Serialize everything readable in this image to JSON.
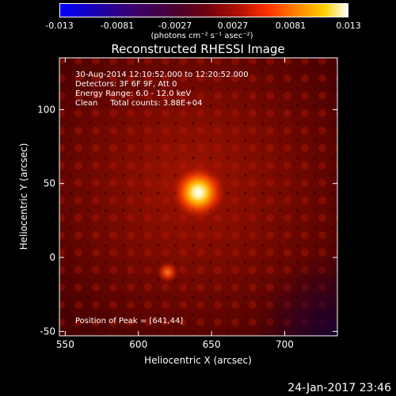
{
  "colorbar": {
    "tick_labels": [
      "-0.013",
      "-0.0081",
      "-0.0027",
      "0.0027",
      "0.0081",
      "0.013"
    ],
    "unit_label": "(photons cm⁻² s⁻¹ asec⁻²)"
  },
  "title": "Reconstructed RHESSI Image",
  "annotations": {
    "time_range": "30-Aug-2014 12:10:52.000 to 12:20:52.000",
    "detectors": "Detectors: 3F 6F 9F, Att 0",
    "energy": "Energy Range: 6.0 - 12.0 keV",
    "method": "Clean     Total counts: 3.88E+04",
    "peak": "Position of Peak = [641,44]"
  },
  "footer_date": "24-Jan-2017 23:46",
  "chart_data": {
    "type": "heatmap",
    "title": "Reconstructed RHESSI Image",
    "xlabel": "Heliocentric X (arcsec)",
    "ylabel": "Heliocentric Y (arcsec)",
    "xlim": [
      546,
      736
    ],
    "ylim": [
      -53,
      135
    ],
    "x_ticks": [
      550,
      600,
      650,
      700
    ],
    "y_ticks": [
      -50,
      0,
      50,
      100
    ],
    "colorbar_range": [
      -0.013,
      0.013
    ],
    "sources": [
      {
        "x": 641,
        "y": 44,
        "level": 1.0
      },
      {
        "x": 620,
        "y": -10,
        "level": 0.35
      }
    ],
    "peak_position": [
      641,
      44
    ]
  }
}
